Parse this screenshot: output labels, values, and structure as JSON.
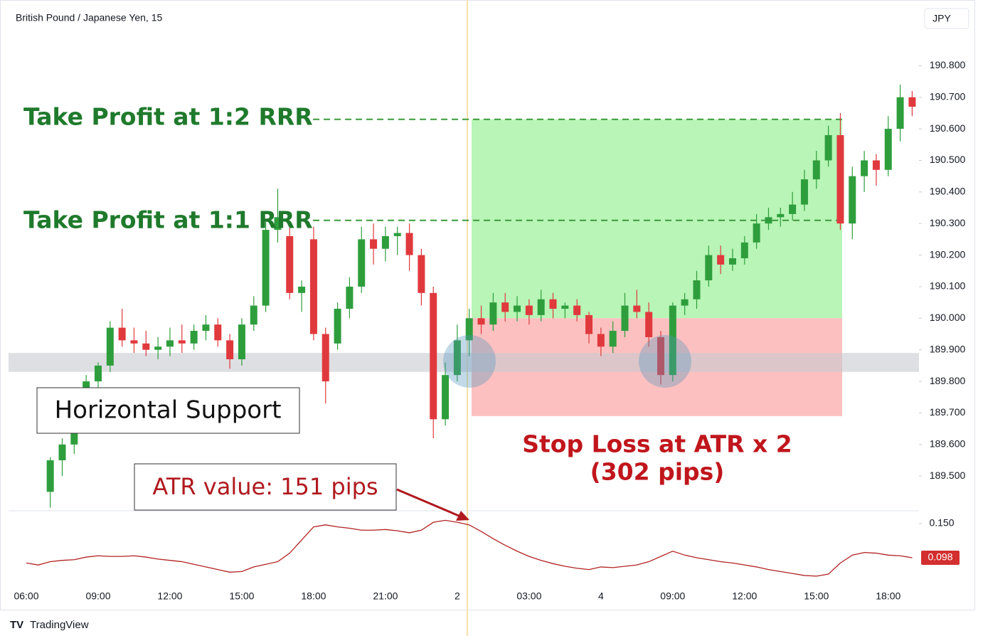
{
  "chart_data": [
    {
      "type": "candlestick",
      "title": "British Pound / Japanese Yen, 15",
      "currency": "JPY",
      "categories": [
        "06:00",
        null,
        null,
        null,
        null,
        null,
        "09:00",
        null,
        null,
        null,
        null,
        null,
        "12:00",
        null,
        null,
        null,
        null,
        null,
        "15:00",
        null,
        null,
        null,
        null,
        null,
        "18:00",
        null,
        null,
        null,
        null,
        null,
        "21:00",
        null,
        null,
        null,
        null,
        null,
        "2",
        null,
        null,
        null,
        null,
        null,
        "03:00",
        null,
        null,
        null,
        null,
        null,
        "4",
        null,
        null,
        null,
        null,
        null,
        "09:00",
        null,
        null,
        null,
        null,
        null,
        "12:00",
        null,
        null,
        null,
        null,
        null,
        "15:00",
        null,
        null,
        null,
        null,
        null,
        "18:00",
        null,
        null
      ],
      "open": [
        null,
        null,
        189.45,
        189.55,
        189.6,
        189.75,
        189.8,
        189.85,
        189.97,
        189.93,
        189.92,
        189.9,
        189.91,
        189.93,
        189.92,
        189.96,
        189.98,
        189.93,
        189.87,
        189.98,
        190.04,
        190.28,
        190.26,
        190.08,
        190.25,
        189.95,
        189.92,
        190.03,
        190.1,
        190.25,
        190.22,
        190.26,
        190.27,
        190.2,
        190.08,
        189.68,
        189.82,
        189.93,
        190.0,
        189.98,
        190.05,
        190.02,
        190.04,
        190.01,
        190.06,
        190.03,
        190.04,
        190.01,
        189.95,
        189.91,
        189.96,
        190.04,
        190.02,
        189.94,
        189.82,
        190.04,
        190.06,
        190.12,
        190.2,
        190.17,
        190.19,
        190.24,
        190.3,
        190.32,
        190.33,
        190.36,
        190.44,
        190.5,
        190.58,
        190.3,
        190.45,
        190.5,
        190.47,
        190.6,
        190.7
      ],
      "high": [
        null,
        null,
        189.56,
        189.62,
        189.78,
        189.82,
        189.86,
        189.99,
        190.03,
        189.97,
        189.96,
        189.94,
        189.97,
        189.98,
        189.98,
        190.01,
        190.0,
        189.95,
        190.0,
        190.07,
        190.31,
        190.41,
        190.3,
        190.12,
        190.29,
        189.97,
        190.05,
        190.13,
        190.29,
        190.3,
        190.29,
        190.29,
        190.3,
        190.22,
        190.1,
        189.86,
        189.98,
        190.03,
        190.04,
        190.08,
        190.08,
        190.07,
        190.06,
        190.09,
        190.08,
        190.05,
        190.06,
        190.02,
        189.97,
        189.99,
        190.08,
        190.09,
        190.05,
        189.96,
        190.05,
        190.08,
        190.15,
        190.23,
        190.23,
        190.22,
        190.26,
        190.33,
        190.35,
        190.35,
        190.4,
        190.47,
        190.53,
        190.61,
        190.65,
        190.48,
        190.53,
        190.52,
        190.64,
        190.74,
        190.72
      ],
      "low": [
        null,
        null,
        189.4,
        189.5,
        189.57,
        189.72,
        189.77,
        189.83,
        189.91,
        189.89,
        189.88,
        189.87,
        189.88,
        189.89,
        189.9,
        189.93,
        189.91,
        189.84,
        189.85,
        189.96,
        190.02,
        190.24,
        190.06,
        190.02,
        189.93,
        189.73,
        189.9,
        190.0,
        190.08,
        190.17,
        190.18,
        190.2,
        190.15,
        190.04,
        189.62,
        189.66,
        189.8,
        189.88,
        189.95,
        189.96,
        189.99,
        189.99,
        189.98,
        189.99,
        190.0,
        190.0,
        189.99,
        189.92,
        189.88,
        189.89,
        189.94,
        190.0,
        189.91,
        189.79,
        189.8,
        190.01,
        190.03,
        190.1,
        190.14,
        190.15,
        190.17,
        190.22,
        190.28,
        190.29,
        190.31,
        190.34,
        190.41,
        190.48,
        190.28,
        190.25,
        190.4,
        190.42,
        190.45,
        190.56,
        190.64
      ],
      "close": [
        null,
        null,
        189.55,
        189.6,
        189.75,
        189.8,
        189.85,
        189.97,
        189.93,
        189.92,
        189.9,
        189.91,
        189.93,
        189.92,
        189.96,
        189.98,
        189.93,
        189.87,
        189.98,
        190.04,
        190.28,
        190.32,
        190.08,
        190.1,
        189.95,
        189.8,
        190.03,
        190.1,
        190.25,
        190.22,
        190.26,
        190.27,
        190.2,
        190.08,
        189.68,
        189.82,
        189.93,
        190.0,
        189.98,
        190.05,
        190.02,
        190.04,
        190.01,
        190.06,
        190.03,
        190.04,
        190.01,
        189.95,
        189.91,
        189.96,
        190.04,
        190.02,
        189.94,
        189.82,
        190.04,
        190.06,
        190.12,
        190.2,
        190.17,
        190.19,
        190.24,
        190.3,
        190.32,
        190.33,
        190.36,
        190.44,
        190.5,
        190.58,
        190.3,
        190.45,
        190.5,
        190.47,
        190.6,
        190.7,
        190.67
      ],
      "up_color": "#2e9e3c",
      "down_color": "#e0393d",
      "ylim": [
        189.39,
        190.99
      ],
      "yticks": [
        {
          "value": 189.5,
          "label": "189.500"
        },
        {
          "value": 189.6,
          "label": "189.600"
        },
        {
          "value": 189.7,
          "label": "189.700"
        },
        {
          "value": 189.8,
          "label": "189.800"
        },
        {
          "value": 189.9,
          "label": "189.900"
        },
        {
          "value": 190.0,
          "label": "190.000"
        },
        {
          "value": 190.1,
          "label": "190.100"
        },
        {
          "value": 190.2,
          "label": "190.200"
        },
        {
          "value": 190.3,
          "label": "190.300"
        },
        {
          "value": 190.4,
          "label": "190.400"
        },
        {
          "value": 190.5,
          "label": "190.500"
        },
        {
          "value": 190.6,
          "label": "190.600"
        },
        {
          "value": 190.7,
          "label": "190.700"
        },
        {
          "value": 190.8,
          "label": "190.800"
        }
      ],
      "levels": {
        "take_profit_2": 190.63,
        "take_profit_1": 190.31,
        "entry": 190.0,
        "stop_loss": 189.69,
        "support_low": 189.83,
        "support_high": 189.89
      },
      "annotations": {
        "take_profit_2": "Take Profit at 1:2 RRR",
        "take_profit_1": "Take Profit at 1:1 RRR",
        "support": "Horizontal Support",
        "atr": "ATR value: 151 pips",
        "stop_loss": "Stop Loss at ATR x 2",
        "stop_loss_pips": "(302 pips)"
      },
      "watermark": "TradingView"
    },
    {
      "type": "line",
      "color": "#b22222",
      "values": [
        0.09,
        0.087,
        0.092,
        0.094,
        0.095,
        0.099,
        0.101,
        0.1,
        0.1,
        0.101,
        0.099,
        0.096,
        0.094,
        0.092,
        0.088,
        0.084,
        0.08,
        0.076,
        0.077,
        0.084,
        0.088,
        0.092,
        0.105,
        0.125,
        0.145,
        0.148,
        0.145,
        0.143,
        0.14,
        0.14,
        0.141,
        0.139,
        0.136,
        0.14,
        0.152,
        0.155,
        0.152,
        0.148,
        0.138,
        0.127,
        0.117,
        0.108,
        0.1,
        0.094,
        0.089,
        0.085,
        0.082,
        0.08,
        0.084,
        0.083,
        0.085,
        0.087,
        0.092,
        0.1,
        0.108,
        0.102,
        0.098,
        0.095,
        0.092,
        0.09,
        0.087,
        0.084,
        0.08,
        0.077,
        0.074,
        0.071,
        0.07,
        0.073,
        0.09,
        0.102,
        0.106,
        0.105,
        0.102,
        0.101,
        0.098
      ],
      "ylim": [
        0.059,
        0.1695
      ],
      "yticks": [
        {
          "value": 0.15,
          "label": "0.150"
        }
      ],
      "last_value": 0.098,
      "last_value_color": "#d32f2f"
    }
  ]
}
